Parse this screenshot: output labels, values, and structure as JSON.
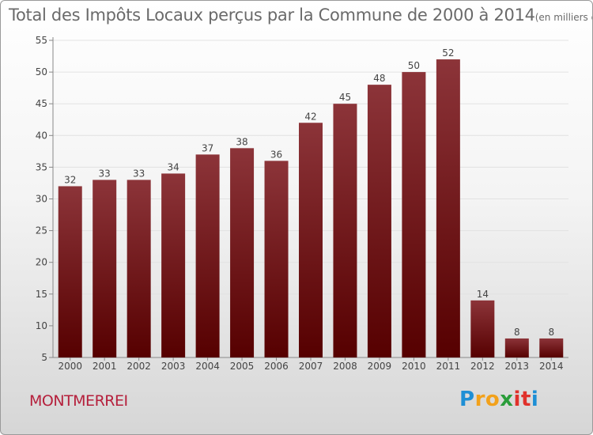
{
  "chart_data": {
    "type": "bar",
    "title": "Total des Impôts Locaux perçus par la Commune de 2000 à 2014",
    "unit": "(en milliers d'€)",
    "xlabel": "",
    "ylabel": "",
    "categories": [
      "2000",
      "2001",
      "2002",
      "2003",
      "2004",
      "2005",
      "2006",
      "2007",
      "2008",
      "2009",
      "2010",
      "2011",
      "2012",
      "2013",
      "2014"
    ],
    "values": [
      32,
      33,
      33,
      34,
      37,
      38,
      36,
      42,
      45,
      48,
      50,
      52,
      14,
      8,
      8
    ],
    "ylim": [
      5,
      55
    ],
    "yticks": [
      5,
      10,
      15,
      20,
      25,
      30,
      35,
      40,
      45,
      50,
      55
    ],
    "grid": true
  },
  "commune": "MONTMERREI",
  "logo": {
    "letters": [
      "P",
      "r",
      "o",
      "x",
      "i",
      "t",
      "i"
    ],
    "colors": [
      "#1e8fd5",
      "#f2a11b",
      "#f2a11b",
      "#2a9d3a",
      "#e0312b",
      "#e0312b",
      "#1e8fd5"
    ]
  },
  "colors": {
    "bar_top": "#8c3439",
    "bar_bottom": "#560000",
    "title": "#6a6a6a",
    "commune": "#b5203c"
  }
}
